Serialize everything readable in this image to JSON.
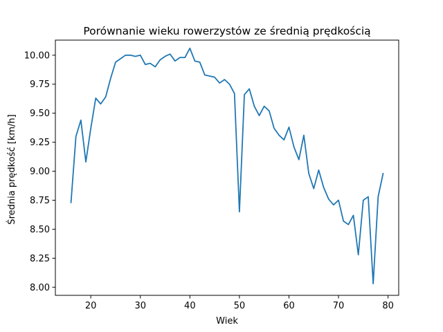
{
  "chart_data": {
    "type": "line",
    "title": "Porównanie wieku rowerzystów ze średnią prędkością",
    "xlabel": "Wiek",
    "ylabel": "Średnia prędkość [km/h]",
    "xlim": [
      12.85,
      82.15
    ],
    "ylim": [
      7.93,
      10.13
    ],
    "x_ticks": [
      20,
      30,
      40,
      50,
      60,
      70,
      80
    ],
    "x_tick_labels": [
      "20",
      "30",
      "40",
      "50",
      "60",
      "70",
      "80"
    ],
    "y_ticks": [
      8.0,
      8.25,
      8.5,
      8.75,
      9.0,
      9.25,
      9.5,
      9.75,
      10.0
    ],
    "y_tick_labels": [
      "8.00",
      "8.25",
      "8.50",
      "8.75",
      "9.00",
      "9.25",
      "9.50",
      "9.75",
      "10.00"
    ],
    "grid": false,
    "line_color": "#1f77b4",
    "series": [
      {
        "x": [
          16,
          17,
          18,
          19,
          20,
          21,
          22,
          23,
          24,
          25,
          26,
          27,
          28,
          29,
          30,
          31,
          32,
          33,
          34,
          35,
          36,
          37,
          38,
          39,
          40,
          41,
          42,
          43,
          44,
          45,
          46,
          47,
          48,
          49,
          50,
          51,
          52,
          53,
          54,
          55,
          56,
          57,
          58,
          59,
          60,
          61,
          62,
          63,
          64,
          65,
          66,
          67,
          68,
          69,
          70,
          71,
          72,
          73,
          74,
          75,
          76,
          77,
          78,
          79
        ],
        "values": [
          8.73,
          9.3,
          9.44,
          9.08,
          9.37,
          9.63,
          9.58,
          9.64,
          9.8,
          9.94,
          9.97,
          10.0,
          10.0,
          9.99,
          10.0,
          9.92,
          9.93,
          9.9,
          9.96,
          9.99,
          10.01,
          9.95,
          9.98,
          9.98,
          10.06,
          9.95,
          9.94,
          9.83,
          9.82,
          9.81,
          9.76,
          9.79,
          9.75,
          9.67,
          8.65,
          9.66,
          9.71,
          9.56,
          9.48,
          9.56,
          9.52,
          9.37,
          9.31,
          9.27,
          9.38,
          9.21,
          9.1,
          9.31,
          8.98,
          8.85,
          9.01,
          8.86,
          8.76,
          8.71,
          8.75,
          8.57,
          8.54,
          8.62,
          8.28,
          8.75,
          8.78,
          8.03,
          8.78,
          8.98
        ]
      }
    ]
  }
}
